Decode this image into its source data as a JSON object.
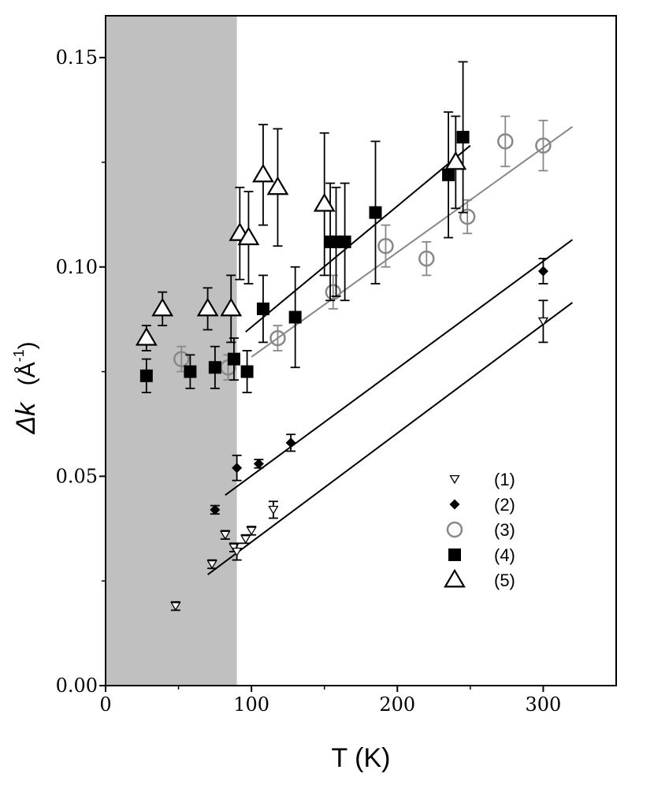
{
  "chart_data": {
    "type": "scatter",
    "title": "",
    "xlabel": "T (K)",
    "ylabel_symbol": "Δk",
    "ylabel_unit": "(Å-1)",
    "xlim": [
      0,
      350
    ],
    "ylim": [
      0,
      0.16
    ],
    "x_ticks": [
      0,
      100,
      200,
      300
    ],
    "x_tick_labels": [
      "0",
      "100",
      "200",
      "300"
    ],
    "y_ticks": [
      0,
      0.05,
      0.1,
      0.15
    ],
    "y_tick_labels": [
      "0.00",
      "0.05",
      "0.10",
      "0.15"
    ],
    "shaded_region": {
      "x": [
        0,
        90
      ],
      "color": "#c0c0c0"
    },
    "grid": false,
    "legend_position": "lower-right",
    "series": [
      {
        "name": "(1)",
        "marker": "triangle-down-open",
        "color": "#000000",
        "points": [
          {
            "x": 48,
            "y": 0.019,
            "err": 0.001
          },
          {
            "x": 73,
            "y": 0.029,
            "err": 0.001
          },
          {
            "x": 82,
            "y": 0.036,
            "err": 0.001
          },
          {
            "x": 88,
            "y": 0.033,
            "err": 0.001
          },
          {
            "x": 90,
            "y": 0.032,
            "err": 0.002
          },
          {
            "x": 96,
            "y": 0.035,
            "err": 0.001
          },
          {
            "x": 100,
            "y": 0.037,
            "err": 0.001
          },
          {
            "x": 115,
            "y": 0.042,
            "err": 0.002
          },
          {
            "x": 300,
            "y": 0.087,
            "err": 0.005
          }
        ],
        "fit": {
          "x": [
            70,
            320
          ],
          "y": [
            0.0265,
            0.0915
          ]
        }
      },
      {
        "name": "(2)",
        "marker": "diamond-filled",
        "color": "#000000",
        "points": [
          {
            "x": 75,
            "y": 0.042,
            "err": 0.001
          },
          {
            "x": 90,
            "y": 0.052,
            "err": 0.003
          },
          {
            "x": 105,
            "y": 0.053,
            "err": 0.001
          },
          {
            "x": 127,
            "y": 0.058,
            "err": 0.002
          },
          {
            "x": 300,
            "y": 0.099,
            "err": 0.003
          }
        ],
        "fit": {
          "x": [
            82,
            320
          ],
          "y": [
            0.0455,
            0.1065
          ]
        }
      },
      {
        "name": "(3)",
        "marker": "circle-open",
        "color": "#888888",
        "points": [
          {
            "x": 52,
            "y": 0.078,
            "err": 0.003
          },
          {
            "x": 84,
            "y": 0.076,
            "err": 0.003
          },
          {
            "x": 118,
            "y": 0.083,
            "err": 0.003
          },
          {
            "x": 156,
            "y": 0.094,
            "err": 0.004
          },
          {
            "x": 192,
            "y": 0.105,
            "err": 0.005
          },
          {
            "x": 220,
            "y": 0.102,
            "err": 0.004
          },
          {
            "x": 248,
            "y": 0.112,
            "err": 0.004
          },
          {
            "x": 274,
            "y": 0.13,
            "err": 0.006
          },
          {
            "x": 300,
            "y": 0.129,
            "err": 0.006
          }
        ],
        "fit": {
          "x": [
            100,
            320
          ],
          "y": [
            0.0785,
            0.1335
          ]
        }
      },
      {
        "name": "(4)",
        "marker": "square-filled",
        "color": "#000000",
        "points": [
          {
            "x": 28,
            "y": 0.074,
            "err": 0.004
          },
          {
            "x": 58,
            "y": 0.075,
            "err": 0.004
          },
          {
            "x": 75,
            "y": 0.076,
            "err": 0.005
          },
          {
            "x": 88,
            "y": 0.078,
            "err": 0.005
          },
          {
            "x": 97,
            "y": 0.075,
            "err": 0.005
          },
          {
            "x": 108,
            "y": 0.09,
            "err": 0.008
          },
          {
            "x": 130,
            "y": 0.088,
            "err": 0.012
          },
          {
            "x": 154,
            "y": 0.106,
            "err": 0.014
          },
          {
            "x": 158,
            "y": 0.106,
            "err": 0.013
          },
          {
            "x": 164,
            "y": 0.106,
            "err": 0.014
          },
          {
            "x": 185,
            "y": 0.113,
            "err": 0.017
          },
          {
            "x": 235,
            "y": 0.122,
            "err": 0.015
          },
          {
            "x": 245,
            "y": 0.131,
            "err": 0.018
          }
        ],
        "fit": {
          "x": [
            96,
            250
          ],
          "y": [
            0.0845,
            0.129
          ]
        }
      },
      {
        "name": "(5)",
        "marker": "triangle-up-open",
        "color": "#000000",
        "points": [
          {
            "x": 28,
            "y": 0.083,
            "err": 0.003
          },
          {
            "x": 39,
            "y": 0.09,
            "err": 0.004
          },
          {
            "x": 70,
            "y": 0.09,
            "err": 0.005
          },
          {
            "x": 86,
            "y": 0.09,
            "err": 0.008
          },
          {
            "x": 92,
            "y": 0.108,
            "err": 0.011
          },
          {
            "x": 98,
            "y": 0.107,
            "err": 0.011
          },
          {
            "x": 108,
            "y": 0.122,
            "err": 0.012
          },
          {
            "x": 118,
            "y": 0.119,
            "err": 0.014
          },
          {
            "x": 150,
            "y": 0.115,
            "err": 0.017
          },
          {
            "x": 240,
            "y": 0.125,
            "err": 0.011
          }
        ]
      }
    ]
  }
}
